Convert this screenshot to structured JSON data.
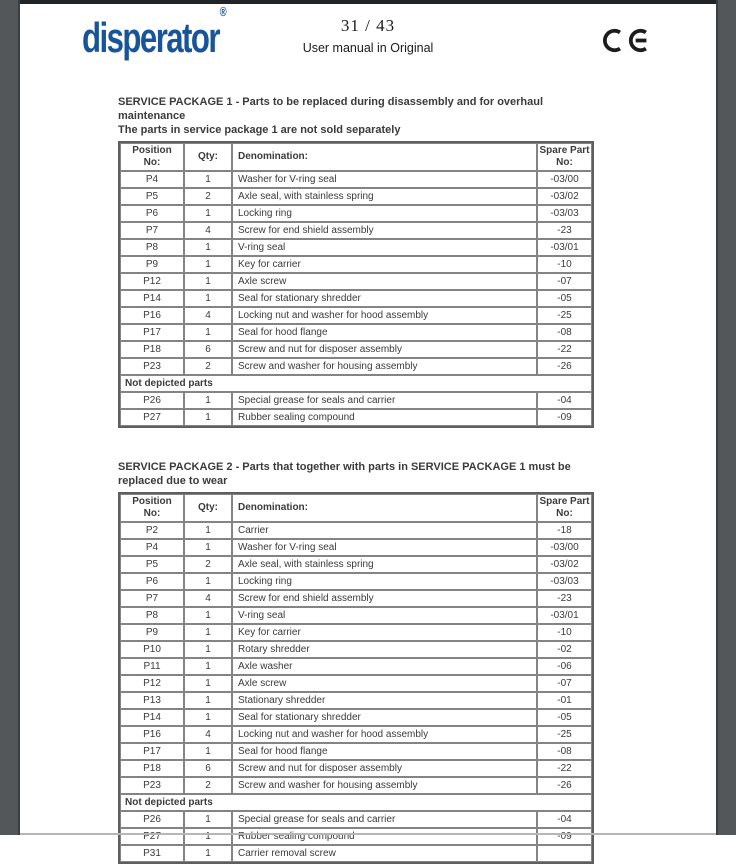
{
  "header": {
    "logo_text": "disperator",
    "logo_registered": "®",
    "page_number": "31 / 43",
    "subtitle": "User manual in Original",
    "ce_mark": "CE"
  },
  "colors": {
    "logo_blue": "#17549a",
    "text": "#3b3b3b",
    "strip_gray": "#54575a",
    "table_border": "#848484"
  },
  "columns": [
    "Position\nNo:",
    "Qty:",
    "Denomination:",
    "Spare Part\nNo:"
  ],
  "tables": [
    {
      "title": "SERVICE PACKAGE 1 - Parts to be replaced during disassembly and for overhaul maintenance",
      "subtitle": "The parts in service package 1 are not sold separately",
      "rows": [
        {
          "type": "item",
          "position": "P4",
          "qty": "1",
          "denomination": "Washer for V-ring seal",
          "spare": "-03/00"
        },
        {
          "type": "item",
          "position": "P5",
          "qty": "2",
          "denomination": "Axle seal, with stainless spring",
          "spare": "-03/02"
        },
        {
          "type": "item",
          "position": "P6",
          "qty": "1",
          "denomination": "Locking ring",
          "spare": "-03/03"
        },
        {
          "type": "item",
          "position": "P7",
          "qty": "4",
          "denomination": "Screw for end shield assembly",
          "spare": "-23"
        },
        {
          "type": "item",
          "position": "P8",
          "qty": "1",
          "denomination": "V-ring seal",
          "spare": "-03/01"
        },
        {
          "type": "item",
          "position": "P9",
          "qty": "1",
          "denomination": "Key for carrier",
          "spare": "-10"
        },
        {
          "type": "item",
          "position": "P12",
          "qty": "1",
          "denomination": "Axle screw",
          "spare": "-07"
        },
        {
          "type": "item",
          "position": "P14",
          "qty": "1",
          "denomination": "Seal for stationary shredder",
          "spare": "-05"
        },
        {
          "type": "item",
          "position": "P16",
          "qty": "4",
          "denomination": "Locking nut and washer for hood assembly",
          "spare": "-25"
        },
        {
          "type": "item",
          "position": "P17",
          "qty": "1",
          "denomination": "Seal for hood flange",
          "spare": "-08"
        },
        {
          "type": "item",
          "position": "P18",
          "qty": "6",
          "denomination": "Screw and nut for disposer assembly",
          "spare": "-22"
        },
        {
          "type": "item",
          "position": "P23",
          "qty": "2",
          "denomination": "Screw and washer for housing assembly",
          "spare": "-26"
        },
        {
          "type": "span",
          "label": "Not depicted parts"
        },
        {
          "type": "item",
          "position": "P26",
          "qty": "1",
          "denomination": "Special grease for seals and carrier",
          "spare": "-04"
        },
        {
          "type": "item",
          "position": "P27",
          "qty": "1",
          "denomination": "Rubber sealing compound",
          "spare": "-09"
        }
      ]
    },
    {
      "title": "SERVICE PACKAGE 2 - Parts that together with parts in SERVICE PACKAGE 1 must be replaced due to wear",
      "subtitle": "",
      "rows": [
        {
          "type": "item",
          "position": "P2",
          "qty": "1",
          "denomination": "Carrier",
          "spare": "-18"
        },
        {
          "type": "item",
          "position": "P4",
          "qty": "1",
          "denomination": "Washer for V-ring seal",
          "spare": "-03/00"
        },
        {
          "type": "item",
          "position": "P5",
          "qty": "2",
          "denomination": "Axle seal, with stainless spring",
          "spare": "-03/02"
        },
        {
          "type": "item",
          "position": "P6",
          "qty": "1",
          "denomination": "Locking ring",
          "spare": "-03/03"
        },
        {
          "type": "item",
          "position": "P7",
          "qty": "4",
          "denomination": "Screw for end shield assembly",
          "spare": "-23"
        },
        {
          "type": "item",
          "position": "P8",
          "qty": "1",
          "denomination": "V-ring seal",
          "spare": "-03/01"
        },
        {
          "type": "item",
          "position": "P9",
          "qty": "1",
          "denomination": "Key for carrier",
          "spare": "-10"
        },
        {
          "type": "item",
          "position": "P10",
          "qty": "1",
          "denomination": "Rotary shredder",
          "spare": "-02"
        },
        {
          "type": "item",
          "position": "P11",
          "qty": "1",
          "denomination": "Axle washer",
          "spare": "-06"
        },
        {
          "type": "item",
          "position": "P12",
          "qty": "1",
          "denomination": "Axle screw",
          "spare": "-07"
        },
        {
          "type": "item",
          "position": "P13",
          "qty": "1",
          "denomination": "Stationary shredder",
          "spare": "-01"
        },
        {
          "type": "item",
          "position": "P14",
          "qty": "1",
          "denomination": "Seal for stationary shredder",
          "spare": "-05"
        },
        {
          "type": "item",
          "position": "P16",
          "qty": "4",
          "denomination": "Locking nut and washer for hood assembly",
          "spare": "-25"
        },
        {
          "type": "item",
          "position": "P17",
          "qty": "1",
          "denomination": "Seal for hood flange",
          "spare": "-08"
        },
        {
          "type": "item",
          "position": "P18",
          "qty": "6",
          "denomination": "Screw and nut for disposer assembly",
          "spare": "-22"
        },
        {
          "type": "item",
          "position": "P23",
          "qty": "2",
          "denomination": "Screw and washer for housing assembly",
          "spare": "-26"
        },
        {
          "type": "span",
          "label": "Not depicted parts"
        },
        {
          "type": "item",
          "position": "P26",
          "qty": "1",
          "denomination": "Special grease for seals and carrier",
          "spare": "-04"
        },
        {
          "type": "item",
          "position": "P27",
          "qty": "1",
          "denomination": "Rubber sealing compound",
          "spare": "-09"
        },
        {
          "type": "item",
          "position": "P31",
          "qty": "1",
          "denomination": "Carrier removal screw",
          "spare": ""
        }
      ]
    }
  ]
}
